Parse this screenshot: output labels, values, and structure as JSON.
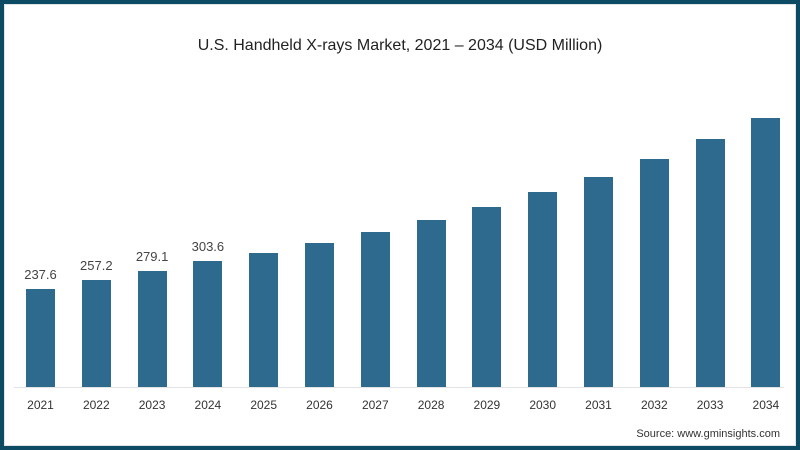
{
  "chart_data": {
    "type": "bar",
    "title": "U.S. Handheld X-rays Market, 2021 – 2034 (USD Million)",
    "xlabel": "",
    "ylabel": "USD Million",
    "categories": [
      "2021",
      "2022",
      "2023",
      "2024",
      "2025",
      "2026",
      "2027",
      "2028",
      "2029",
      "2030",
      "2031",
      "2032",
      "2033",
      "2034"
    ],
    "values": [
      237.6,
      257.2,
      279.1,
      303.6,
      324,
      348,
      373,
      402,
      434,
      470,
      507,
      551,
      598,
      650
    ],
    "data_labels": [
      "237.6",
      "257.2",
      "279.1",
      "303.6",
      "",
      "",
      "",
      "",
      "",
      "",
      "",
      "",
      "",
      ""
    ],
    "ylim": [
      0,
      700
    ],
    "grid": false,
    "legend": null,
    "color": "#2e6a8e",
    "source": "Source: www.gminsights.com"
  }
}
